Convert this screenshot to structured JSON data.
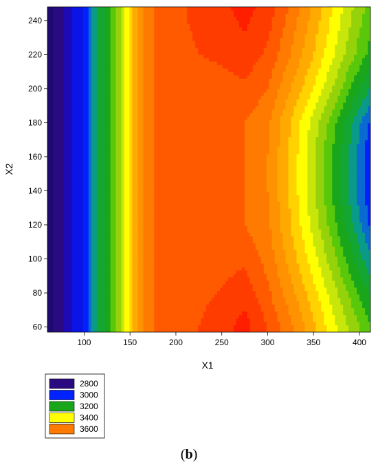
{
  "panel_label": {
    "open": "(",
    "letter": "b",
    "close": ")"
  },
  "chart_data": {
    "type": "contour",
    "xlabel": "X1",
    "ylabel": "X2",
    "xlim": [
      60,
      412
    ],
    "ylim": [
      57,
      248
    ],
    "xticks": [
      100,
      150,
      200,
      250,
      300,
      350,
      400
    ],
    "yticks": [
      60,
      80,
      100,
      120,
      140,
      160,
      180,
      200,
      220,
      240
    ],
    "legend": {
      "placement": "bottom-left",
      "entries": [
        {
          "label": "2800",
          "color": "#2a0a80"
        },
        {
          "label": "3000",
          "color": "#0022ff"
        },
        {
          "label": "3200",
          "color": "#1aa61a"
        },
        {
          "label": "3400",
          "color": "#ffff00"
        },
        {
          "label": "3600",
          "color": "#ff7a00"
        }
      ]
    },
    "levels": [
      2800,
      2850,
      2900,
      2950,
      3000,
      3050,
      3100,
      3150,
      3200,
      3250,
      3300,
      3350,
      3400,
      3450,
      3500,
      3550,
      3600,
      3650,
      3700
    ],
    "level_colors": [
      "#1e0a6e",
      "#2a0a80",
      "#1e0ab4",
      "#0a14e6",
      "#0022ff",
      "#0a6ad2",
      "#0a9a8a",
      "#14a632",
      "#1aa61a",
      "#5ac80a",
      "#96d20a",
      "#c8e60a",
      "#ffff00",
      "#ffd200",
      "#ffaa00",
      "#ff9200",
      "#ff7a00",
      "#ff5a00",
      "#ff3c00",
      "#ff1e00"
    ],
    "x": [
      60,
      80,
      100,
      110,
      120,
      140,
      160,
      175,
      200,
      225,
      250,
      275,
      300,
      325,
      350,
      375,
      400,
      412
    ],
    "y": [
      57,
      60,
      75,
      100,
      120,
      140,
      160,
      180,
      200,
      220,
      240,
      248
    ],
    "z": [
      [
        2780,
        2860,
        2960,
        3060,
        3140,
        3300,
        3520,
        3600,
        3620,
        3650,
        3680,
        3720,
        3650,
        3560,
        3460,
        3350,
        3250,
        3200
      ],
      [
        2780,
        2860,
        2960,
        3060,
        3140,
        3300,
        3520,
        3600,
        3620,
        3650,
        3680,
        3720,
        3650,
        3560,
        3460,
        3350,
        3250,
        3200
      ],
      [
        2780,
        2860,
        2960,
        3060,
        3140,
        3300,
        3520,
        3600,
        3610,
        3640,
        3660,
        3690,
        3620,
        3530,
        3430,
        3320,
        3210,
        3160
      ],
      [
        2780,
        2860,
        2960,
        3060,
        3140,
        3300,
        3520,
        3600,
        3600,
        3620,
        3630,
        3640,
        3580,
        3480,
        3370,
        3250,
        3120,
        3060
      ],
      [
        2780,
        2860,
        2960,
        3060,
        3140,
        3300,
        3520,
        3600,
        3600,
        3600,
        3600,
        3600,
        3560,
        3450,
        3330,
        3200,
        3060,
        2990
      ],
      [
        2780,
        2860,
        2960,
        3060,
        3140,
        3300,
        3520,
        3600,
        3600,
        3600,
        3600,
        3600,
        3550,
        3440,
        3310,
        3170,
        3030,
        2960
      ],
      [
        2780,
        2860,
        2960,
        3060,
        3140,
        3300,
        3520,
        3600,
        3600,
        3600,
        3600,
        3600,
        3550,
        3440,
        3310,
        3170,
        3030,
        2960
      ],
      [
        2780,
        2860,
        2960,
        3060,
        3140,
        3300,
        3520,
        3600,
        3600,
        3600,
        3600,
        3600,
        3560,
        3450,
        3330,
        3200,
        3060,
        2990
      ],
      [
        2780,
        2860,
        2960,
        3060,
        3140,
        3300,
        3520,
        3600,
        3620,
        3620,
        3630,
        3640,
        3600,
        3500,
        3400,
        3280,
        3150,
        3100
      ],
      [
        2780,
        2860,
        2960,
        3060,
        3140,
        3300,
        3520,
        3600,
        3630,
        3650,
        3660,
        3680,
        3640,
        3550,
        3450,
        3340,
        3230,
        3180
      ],
      [
        2780,
        2860,
        2960,
        3060,
        3140,
        3300,
        3520,
        3600,
        3640,
        3660,
        3680,
        3710,
        3670,
        3580,
        3480,
        3370,
        3260,
        3220
      ],
      [
        2780,
        2860,
        2960,
        3060,
        3140,
        3300,
        3520,
        3600,
        3640,
        3660,
        3690,
        3720,
        3680,
        3590,
        3490,
        3380,
        3270,
        3230
      ]
    ]
  }
}
